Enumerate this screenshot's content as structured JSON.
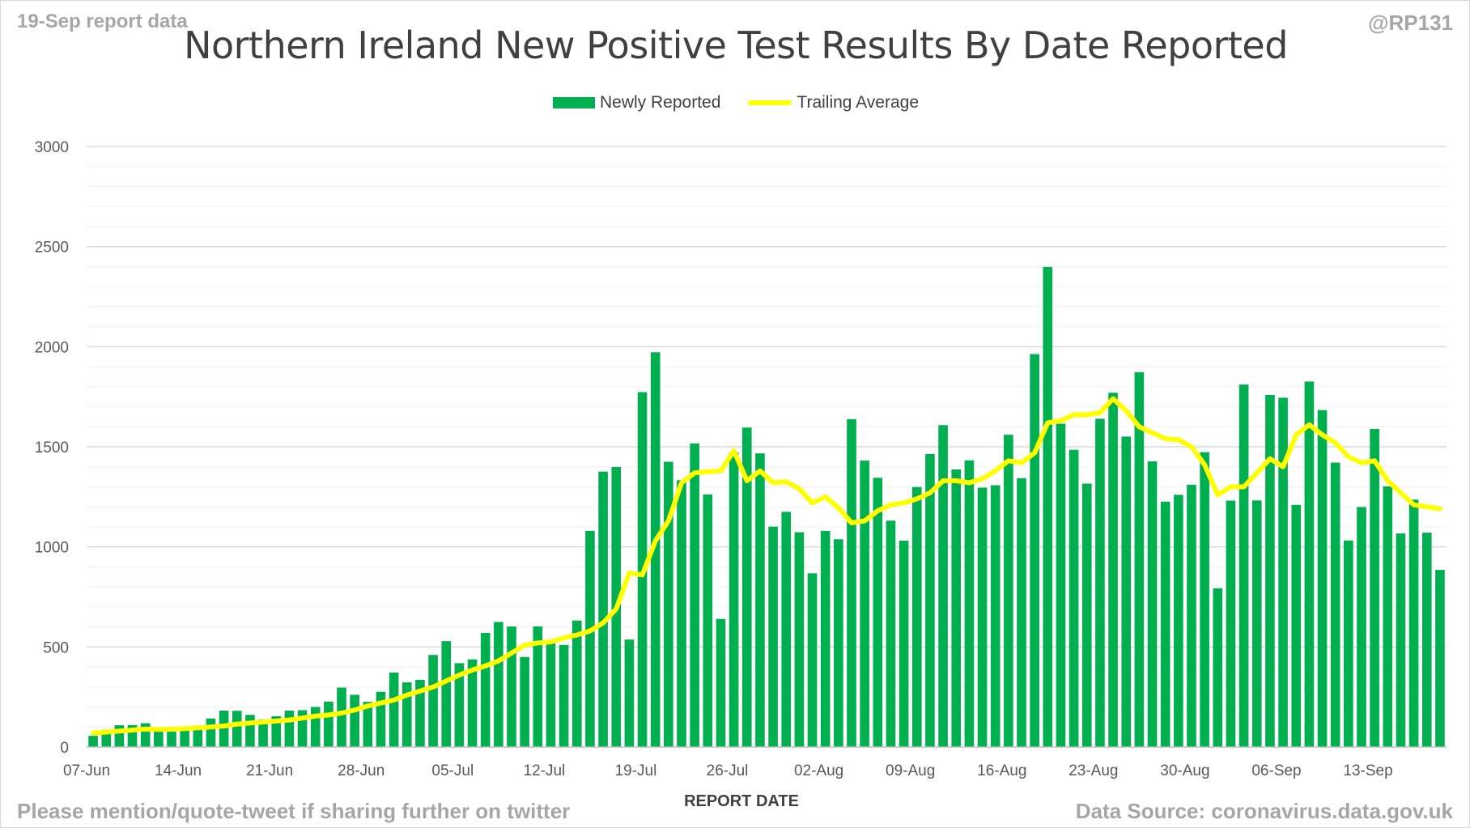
{
  "header": {
    "report_date": "19-Sep report data",
    "handle": "@RP131"
  },
  "footer": {
    "left": "Please mention/quote-tweet if sharing further on twitter",
    "right": "Data Source: coronavirus.data.gov.uk"
  },
  "colors": {
    "bar": "#00b050",
    "line": "#ffff00",
    "grid_major": "#d9d9d9",
    "grid_minor": "#f0f0f0"
  },
  "chart_data": {
    "type": "bar",
    "title": "Northern Ireland New Positive Test Results By Date Reported",
    "xlabel": "REPORT DATE",
    "ylabel": "",
    "ylim": [
      0,
      3000
    ],
    "yticks": [
      "0",
      "500",
      "1000",
      "1500",
      "2000",
      "2500",
      "3000"
    ],
    "xtick_labels": [
      "07-Jun",
      "14-Jun",
      "21-Jun",
      "28-Jun",
      "05-Jul",
      "12-Jul",
      "19-Jul",
      "26-Jul",
      "02-Aug",
      "09-Aug",
      "16-Aug",
      "23-Aug",
      "30-Aug",
      "06-Sep",
      "13-Sep"
    ],
    "grid": true,
    "legend_position": "top-center",
    "first_date": "07-Jun",
    "last_date": "18-Sep",
    "series": [
      {
        "name": "Newly Reported",
        "type": "bar",
        "values": [
          56,
          86,
          109,
          110,
          119,
          86,
          77,
          100,
          107,
          143,
          182,
          181,
          161,
          138,
          154,
          182,
          184,
          200,
          227,
          297,
          261,
          226,
          276,
          372,
          323,
          336,
          460,
          529,
          419,
          438,
          570,
          625,
          602,
          450,
          603,
          533,
          510,
          632,
          1080,
          1376,
          1399,
          537,
          1773,
          1972,
          1425,
          1333,
          1517,
          1262,
          640,
          1472,
          1596,
          1467,
          1101,
          1175,
          1073,
          868,
          1080,
          1038,
          1638,
          1431,
          1345,
          1131,
          1031,
          1299,
          1464,
          1608,
          1387,
          1432,
          1296,
          1308,
          1560,
          1343,
          1963,
          2398,
          1615,
          1485,
          1316,
          1640,
          1770,
          1551,
          1873,
          1427,
          1226,
          1260,
          1310,
          1473,
          793,
          1231,
          1811,
          1232,
          1759,
          1745,
          1210,
          1826,
          1683,
          1421,
          1032,
          1199,
          1589,
          1302,
          1067,
          1236,
          1071,
          885
        ]
      },
      {
        "name": "Trailing Average",
        "type": "line",
        "values": [
          70,
          75,
          80,
          85,
          90,
          88,
          90,
          92,
          96,
          100,
          105,
          115,
          120,
          125,
          130,
          135,
          145,
          155,
          160,
          170,
          185,
          205,
          220,
          235,
          260,
          280,
          300,
          330,
          360,
          385,
          405,
          430,
          470,
          510,
          520,
          525,
          545,
          560,
          580,
          620,
          690,
          870,
          860,
          1030,
          1130,
          1320,
          1370,
          1375,
          1380,
          1480,
          1330,
          1380,
          1320,
          1325,
          1290,
          1220,
          1250,
          1195,
          1120,
          1130,
          1180,
          1210,
          1220,
          1240,
          1270,
          1330,
          1330,
          1320,
          1340,
          1380,
          1430,
          1420,
          1470,
          1620,
          1630,
          1660,
          1660,
          1670,
          1740,
          1680,
          1600,
          1570,
          1540,
          1535,
          1500,
          1410,
          1260,
          1300,
          1300,
          1370,
          1440,
          1400,
          1560,
          1610,
          1560,
          1520,
          1450,
          1420,
          1430,
          1330,
          1270,
          1210,
          1200,
          1190
        ]
      }
    ]
  }
}
